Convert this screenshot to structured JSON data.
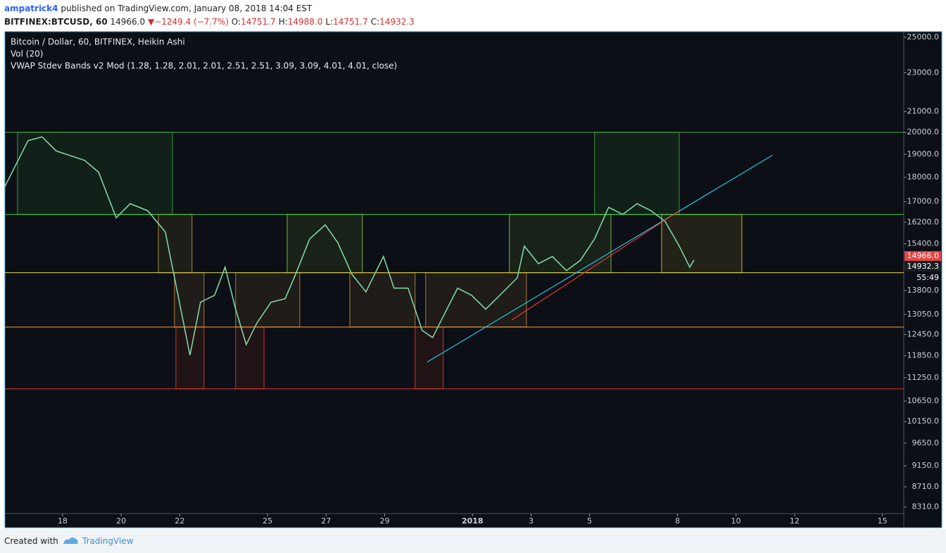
{
  "header": {
    "author": "ampatrick4",
    "published": "published on TradingView.com, January 08, 2018 14:04 EST",
    "symbol": "BITFINEX:BTCUSD, 60",
    "last": "14966.0",
    "arrow": "▼",
    "change": "−1249.4 (−7.7%)",
    "ohlc": [
      {
        "label": "O:",
        "value": "14751.7"
      },
      {
        "label": "H:",
        "value": "14988.0"
      },
      {
        "label": "L:",
        "value": "14751.7"
      },
      {
        "label": "C:",
        "value": "14932.3"
      }
    ]
  },
  "chart_data": {
    "type": "line",
    "indicators": [
      "Vol (20)",
      "VWAP Stdev Bands v2 Mod (1.28, 1.28, 2.01, 2.01, 2.51, 2.51, 3.09, 3.09, 4.01, 4.01, close)"
    ],
    "x": [
      16.03,
      16.82,
      17.3,
      17.78,
      18.75,
      19.23,
      19.83,
      20.31,
      20.91,
      21.51,
      21.99,
      22.35,
      22.71,
      23.19,
      23.55,
      23.91,
      24.27,
      24.63,
      25.12,
      25.6,
      25.96,
      26.44,
      26.97,
      27.4,
      27.88,
      28.36,
      28.96,
      29.32,
      29.8,
      30.28,
      30.64,
      31.0,
      31.49,
      31.97,
      32.45,
      32.93,
      33.53,
      33.77,
      34.25,
      34.73,
      35.21,
      35.69,
      36.17,
      36.65,
      37.13,
      37.62,
      38.1,
      38.58,
      39.06,
      39.42,
      39.56
    ],
    "series": [
      {
        "name": "Bitcoin / Dollar, 60, BITFINEX, Heikin Ashi",
        "color": "#7ed3a0",
        "values": [
          17620,
          19620,
          19790,
          19150,
          18730,
          18220,
          16370,
          16920,
          16640,
          15830,
          13430,
          11860,
          13430,
          13650,
          14580,
          13210,
          12160,
          12780,
          13430,
          13540,
          14340,
          15580,
          16100,
          15440,
          14340,
          13760,
          14950,
          13880,
          13880,
          12570,
          12360,
          12990,
          13880,
          13650,
          13210,
          13650,
          14220,
          15320,
          14700,
          14950,
          14460,
          14820,
          15580,
          16780,
          16500,
          16920,
          16640,
          16230,
          15320,
          14580,
          14820
        ]
      }
    ],
    "log_scale": true,
    "xlim": [
      16.03,
      46.73
    ],
    "xticks": [
      18,
      20,
      22,
      25,
      27,
      29,
      {
        "value": 32,
        "label": "2018"
      },
      {
        "value": 34,
        "label": "3"
      },
      {
        "value": 36,
        "label": "5"
      },
      {
        "value": 39,
        "label": "8"
      },
      {
        "value": 41,
        "label": "10"
      },
      {
        "value": 43,
        "label": "12"
      },
      {
        "value": 46,
        "label": "15"
      }
    ],
    "ylim": [
      8180,
      25330
    ],
    "yticks": [
      {
        "value": 25000,
        "label": "25000.0"
      },
      {
        "value": 23000,
        "label": "23000.0"
      },
      {
        "value": 21000,
        "label": "21000.0"
      },
      {
        "value": 20000,
        "label": "20000.0"
      },
      {
        "value": 19000,
        "label": "19000.0"
      },
      {
        "value": 18000,
        "label": "18000.0"
      },
      {
        "value": 17000,
        "label": "17000.0"
      },
      {
        "value": 16200,
        "label": "16200.0"
      },
      {
        "value": 15400,
        "label": "15400.0"
      },
      {
        "value": 13800,
        "label": "13800.0"
      },
      {
        "value": 13050,
        "label": "13050.0"
      },
      {
        "value": 12450,
        "label": "12450.0"
      },
      {
        "value": 11850,
        "label": "11850.0"
      },
      {
        "value": 11250,
        "label": "11250.0"
      },
      {
        "value": 10650,
        "label": "10650.0"
      },
      {
        "value": 10150,
        "label": "10150.0"
      },
      {
        "value": 9650,
        "label": "9650.0"
      },
      {
        "value": 9150,
        "label": "9150.0"
      },
      {
        "value": 8710,
        "label": "8710.0"
      },
      {
        "value": 8310,
        "label": "8310.0"
      }
    ],
    "levels": [
      {
        "value": 20000,
        "color": "#4caf50"
      },
      {
        "value": 16500,
        "color": "#3ddc3d"
      },
      {
        "value": 14390,
        "color": "#e8d84a"
      },
      {
        "value": 12670,
        "color": "#ff9e3a"
      },
      {
        "value": 10960,
        "color": "#e53935"
      }
    ],
    "zones": [
      {
        "x": [
          16.46,
          21.75
        ],
        "y": [
          20000,
          16500
        ],
        "color": "#3c9a3c"
      },
      {
        "x": [
          36.17,
          39.06
        ],
        "y": [
          20000,
          16500
        ],
        "color": "#3c9a3c"
      },
      {
        "x": [
          21.27,
          22.42
        ],
        "y": [
          16500,
          14390
        ],
        "color": "#a38a3a"
      },
      {
        "x": [
          25.67,
          28.24
        ],
        "y": [
          16500,
          14390
        ],
        "color": "#7fb03a"
      },
      {
        "x": [
          33.26,
          36.73
        ],
        "y": [
          16500,
          14390
        ],
        "color": "#7fb03a"
      },
      {
        "x": [
          38.46,
          41.2
        ],
        "y": [
          16500,
          14390
        ],
        "color": "#c8b03a"
      },
      {
        "x": [
          21.82,
          22.83
        ],
        "y": [
          14390,
          12670
        ],
        "color": "#b07a3a"
      },
      {
        "x": [
          23.91,
          26.1
        ],
        "y": [
          14390,
          12670
        ],
        "color": "#b07a3a"
      },
      {
        "x": [
          27.81,
          30.04
        ],
        "y": [
          14390,
          12670
        ],
        "color": "#b07a3a"
      },
      {
        "x": [
          30.4,
          33.84
        ],
        "y": [
          14390,
          12670
        ],
        "color": "#b07a3a"
      },
      {
        "x": [
          21.87,
          22.83
        ],
        "y": [
          12670,
          10960
        ],
        "color": "#c0392b"
      },
      {
        "x": [
          23.91,
          24.88
        ],
        "y": [
          12670,
          10960
        ],
        "color": "#c0392b"
      },
      {
        "x": [
          30.04,
          31.0
        ],
        "y": [
          12670,
          10960
        ],
        "color": "#c0392b"
      }
    ],
    "trend_lines": [
      {
        "x": [
          30.45,
          42.25
        ],
        "y": [
          11670,
          18960
        ],
        "color": "#29c5e6"
      },
      {
        "x": [
          33.34,
          39.06
        ],
        "y": [
          12880,
          16640
        ],
        "color": "#e53935"
      }
    ],
    "price_markers": [
      {
        "value": 14966.0,
        "label": "14966.0",
        "color": "#e04545"
      },
      {
        "value": 14932.3,
        "label": "14932.3",
        "color": "#1a1e26"
      }
    ],
    "countdown": "55:49"
  },
  "footer": {
    "created": "Created with",
    "brand": "TradingView"
  }
}
